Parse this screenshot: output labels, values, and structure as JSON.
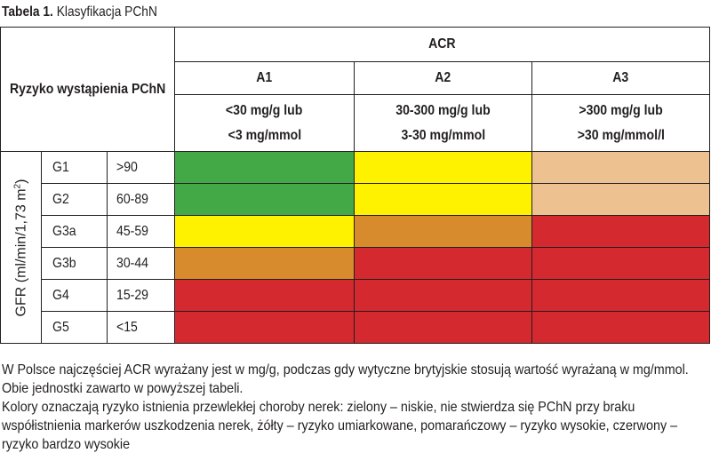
{
  "caption": {
    "number": "Tabela 1.",
    "title": "Klasyfikacja PChN"
  },
  "table": {
    "risk_label": "Ryzyko wystąpienia PChN",
    "acr_header": "ACR",
    "gfr_axis_label": "GFR (ml/min/1,73 m",
    "gfr_axis_sup": "2",
    "gfr_axis_close": ")",
    "columns": [
      {
        "name": "A1",
        "line1": "<30 mg/g lub",
        "line2": "<3 mg/mmol"
      },
      {
        "name": "A2",
        "line1": "30-300 mg/g lub",
        "line2": "3-30 mg/mmol"
      },
      {
        "name": "A3",
        "line1": ">300 mg/g lub",
        "line2": ">30 mg/mmol/l"
      }
    ],
    "risk_colors": {
      "green": "#43a846",
      "yellow": "#fff200",
      "light-orange": "#eec290",
      "orange": "#d88b2c",
      "red": "#d42a2f"
    },
    "rows": [
      {
        "stage": "G1",
        "range": ">90",
        "risk": [
          "green",
          "yellow",
          "light-orange"
        ]
      },
      {
        "stage": "G2",
        "range": "60-89",
        "risk": [
          "green",
          "yellow",
          "light-orange"
        ]
      },
      {
        "stage": "G3a",
        "range": "45-59",
        "risk": [
          "yellow",
          "orange",
          "red"
        ]
      },
      {
        "stage": "G3b",
        "range": "30-44",
        "risk": [
          "orange",
          "red",
          "red"
        ]
      },
      {
        "stage": "G4",
        "range": "15-29",
        "risk": [
          "red",
          "red",
          "red"
        ]
      },
      {
        "stage": "G5",
        "range": "<15",
        "risk": [
          "red",
          "red",
          "red"
        ]
      }
    ]
  },
  "notes": [
    "W Polsce najczęściej ACR wyrażany jest w mg/g, podczas gdy wytyczne brytyjskie stosują wartość wyrażaną w mg/mmol. Obie jednostki zawarto w powyższej tabeli.",
    "Kolory oznaczają ryzyko istnienia przewlekłej choroby nerek: zielony – niskie, nie stwierdza się PChN przy braku współistnienia markerów uszkodzenia nerek, żółty – ryzyko umiarkowane, pomarańczowy – ryzyko wysokie, czerwony – ryzyko bardzo wysokie"
  ]
}
